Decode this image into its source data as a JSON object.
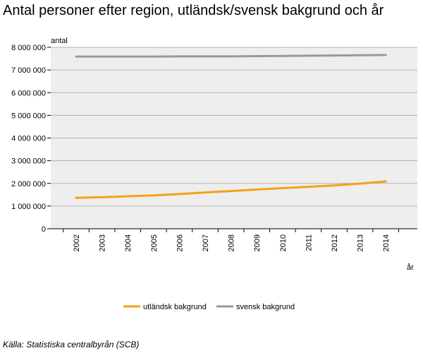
{
  "title": "Antal personer efter region, utländsk/svensk bakgrund och år",
  "source": "Källa: Statistiska centralbyrån (SCB)",
  "chart_data": {
    "type": "line",
    "title": "Antal personer efter region, utländsk/svensk bakgrund och år",
    "ylabel": "antal",
    "xlabel": "år",
    "categories": [
      "2002",
      "2003",
      "2004",
      "2005",
      "2006",
      "2007",
      "2008",
      "2009",
      "2010",
      "2011",
      "2012",
      "2013",
      "2014"
    ],
    "ylim": [
      0,
      8000000
    ],
    "yticks": [
      0,
      1000000,
      2000000,
      3000000,
      4000000,
      5000000,
      6000000,
      7000000,
      8000000
    ],
    "ytick_labels": [
      "0",
      "1 000 000",
      "2 000 000",
      "3 000 000",
      "4 000 000",
      "5 000 000",
      "6 000 000",
      "7 000 000",
      "8 000 000"
    ],
    "grid": true,
    "legend_position": "bottom",
    "series": [
      {
        "name": "utländsk bakgrund",
        "color": "#f5a01a",
        "values": [
          1360000,
          1390000,
          1430000,
          1470000,
          1530000,
          1600000,
          1660000,
          1730000,
          1790000,
          1850000,
          1910000,
          1990000,
          2090000
        ]
      },
      {
        "name": "svensk bakgrund",
        "color": "#999999",
        "values": [
          7590000,
          7590000,
          7590000,
          7590000,
          7600000,
          7600000,
          7600000,
          7610000,
          7620000,
          7630000,
          7640000,
          7650000,
          7660000
        ]
      }
    ]
  }
}
